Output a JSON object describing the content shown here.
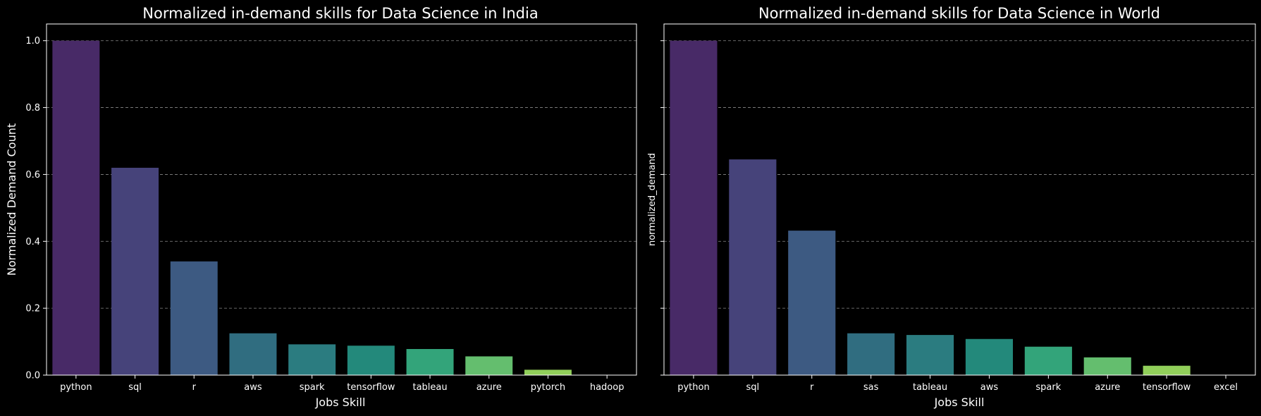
{
  "chart_data": [
    {
      "type": "bar",
      "title": "Normalized in-demand skills for Data Science in India",
      "xlabel": "Jobs Skill",
      "ylabel": "Normalized Demand Count",
      "categories": [
        "python",
        "sql",
        "r",
        "aws",
        "spark",
        "tensorflow",
        "tableau",
        "azure",
        "pytorch",
        "hadoop"
      ],
      "values": [
        1.0,
        0.62,
        0.34,
        0.125,
        0.092,
        0.088,
        0.078,
        0.056,
        0.016,
        0.0
      ],
      "ylim": [
        0,
        1.05
      ],
      "yticks": [
        "0.0",
        "0.2",
        "0.4",
        "0.6",
        "0.8",
        "1.0"
      ],
      "grid": "y-dashed",
      "colors": [
        "#482a67",
        "#46437a",
        "#3d5a82",
        "#306d80",
        "#2b7c80",
        "#23897b",
        "#33a47a",
        "#64be6e",
        "#91cf5a",
        "#c6dd3a"
      ]
    },
    {
      "type": "bar",
      "title": "Normalized in-demand skills for Data Science in World",
      "xlabel": "Jobs Skill",
      "ylabel": "normalized_demand",
      "categories": [
        "python",
        "sql",
        "r",
        "sas",
        "tableau",
        "aws",
        "spark",
        "azure",
        "tensorflow",
        "excel"
      ],
      "values": [
        1.0,
        0.645,
        0.432,
        0.125,
        0.12,
        0.108,
        0.085,
        0.053,
        0.028,
        0.0
      ],
      "ylim": [
        0,
        1.05
      ],
      "yticks": [
        "0.0",
        "0.2",
        "0.4",
        "0.6",
        "0.8",
        "1.0"
      ],
      "grid": "y-dashed",
      "colors": [
        "#482a67",
        "#46437a",
        "#3d5a82",
        "#306d80",
        "#2b7c80",
        "#23897b",
        "#33a47a",
        "#64be6e",
        "#91cf5a",
        "#c6dd3a"
      ]
    }
  ]
}
